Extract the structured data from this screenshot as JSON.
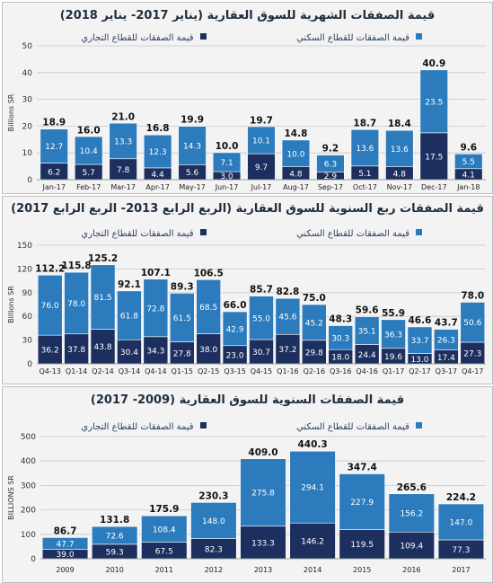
{
  "colors": {
    "commercial": "#1c2f5e",
    "residential": "#2c7bbd",
    "grid": "#c7c7c7"
  },
  "chart_data": [
    {
      "type": "bar",
      "stacked": true,
      "title": "قيمة الصفقات الشهرية للسوق العقارية (يناير 2017- يناير 2018)",
      "ylabel": "Billions SR",
      "ylim": [
        0,
        50
      ],
      "yticks": [
        0,
        10,
        20,
        30,
        40,
        50
      ],
      "grid": true,
      "legend_position": "top",
      "categories": [
        "Jan-17",
        "Feb-17",
        "Mar-17",
        "Apr-17",
        "May-17",
        "Jun-17",
        "Jul-17",
        "Aug-17",
        "Sep-17",
        "Oct-17",
        "Nov-17",
        "Dec-17",
        "Jan-18"
      ],
      "series": [
        {
          "name": "قيمة الصفقات للقطاع التجاري",
          "color": "#1c2f5e",
          "values": [
            6.2,
            5.7,
            7.8,
            4.4,
            5.6,
            3.0,
            9.7,
            4.8,
            2.9,
            5.1,
            4.8,
            17.5,
            4.1
          ]
        },
        {
          "name": "قيمة الصفقات للقطاع السكني",
          "color": "#2c7bbd",
          "values": [
            12.7,
            10.4,
            13.3,
            12.3,
            14.3,
            7.1,
            10.1,
            10.0,
            6.3,
            13.6,
            13.6,
            23.5,
            5.5
          ]
        }
      ],
      "totals": [
        18.9,
        16.0,
        21.0,
        16.8,
        19.9,
        10.0,
        19.7,
        14.8,
        9.2,
        18.7,
        18.4,
        40.9,
        9.6
      ]
    },
    {
      "type": "bar",
      "stacked": true,
      "title": "قيمة الصفقات ربع السنوية للسوق العقارية (الربع الرابع 2013- الربع الرابع 2017)",
      "ylabel": "Billions SR",
      "ylim": [
        0,
        150
      ],
      "yticks": [
        0,
        30,
        60,
        90,
        120,
        150
      ],
      "grid": true,
      "legend_position": "top",
      "categories": [
        "Q4-13",
        "Q1-14",
        "Q2-14",
        "Q3-14",
        "Q4-14",
        "Q1-15",
        "Q2-15",
        "Q3-15",
        "Q4-15",
        "Q1-16",
        "Q2-16",
        "Q3-16",
        "Q4-16",
        "Q1-17",
        "Q2-17",
        "Q3-17",
        "Q4-17"
      ],
      "series": [
        {
          "name": "قيمة الصفقات للقطاع التجاري",
          "color": "#1c2f5e",
          "values": [
            36.2,
            37.8,
            43.8,
            30.4,
            34.3,
            27.8,
            38.0,
            23.0,
            30.7,
            37.2,
            29.8,
            18.0,
            24.4,
            19.6,
            13.0,
            17.4,
            27.3
          ]
        },
        {
          "name": "قيمة الصفقات للقطاع السكني",
          "color": "#2c7bbd",
          "values": [
            76.0,
            78.0,
            81.5,
            61.8,
            72.8,
            61.5,
            68.5,
            42.9,
            55.0,
            45.6,
            45.2,
            30.3,
            35.1,
            36.3,
            33.7,
            26.3,
            50.6
          ]
        }
      ],
      "totals": [
        112.2,
        115.8,
        125.2,
        92.1,
        107.1,
        89.3,
        106.5,
        66.0,
        85.7,
        82.8,
        75.0,
        48.3,
        59.6,
        55.9,
        46.6,
        43.7,
        78.0
      ]
    },
    {
      "type": "bar",
      "stacked": true,
      "title": "قيمة الصفقات السنوية للسوق العقارية (2009- 2017)",
      "ylabel": "BILLIONS SR",
      "ylim": [
        0,
        500
      ],
      "yticks": [
        0,
        100,
        200,
        300,
        400,
        500
      ],
      "grid": true,
      "legend_position": "top",
      "categories": [
        "2009",
        "2010",
        "2011",
        "2012",
        "2013",
        "2014",
        "2015",
        "2016",
        "2017"
      ],
      "series": [
        {
          "name": "قيمة الصفقات للقطاع التجاري",
          "color": "#1c2f5e",
          "values": [
            39.0,
            59.3,
            67.5,
            82.3,
            133.3,
            146.2,
            119.5,
            109.4,
            77.3
          ]
        },
        {
          "name": "قيمة الصفقات للقطاع السكني",
          "color": "#2c7bbd",
          "values": [
            47.7,
            72.6,
            108.4,
            148.0,
            275.8,
            294.1,
            227.9,
            156.2,
            147.0
          ]
        }
      ],
      "totals": [
        86.7,
        131.8,
        175.9,
        230.3,
        409.0,
        440.3,
        347.4,
        265.6,
        224.2
      ]
    }
  ]
}
